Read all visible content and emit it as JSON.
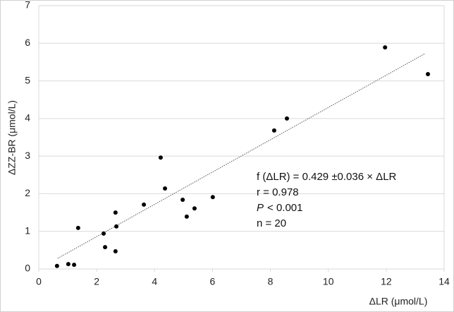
{
  "chart_data": {
    "type": "scatter",
    "x_label": "ΔLR (μmol/L)",
    "y_label": "ΔZZ-BR (μmol/L)",
    "x": [
      0.63,
      1.02,
      1.22,
      1.36,
      2.24,
      2.29,
      2.65,
      2.68,
      2.65,
      3.63,
      4.21,
      4.36,
      4.97,
      5.11,
      5.38,
      6.01,
      8.13,
      8.57,
      11.96,
      13.44
    ],
    "values": [
      0.08,
      0.13,
      0.11,
      1.09,
      0.94,
      0.58,
      1.5,
      1.13,
      0.47,
      1.71,
      2.96,
      2.14,
      1.84,
      1.39,
      1.61,
      1.91,
      3.68,
      4.0,
      5.89,
      5.18
    ],
    "color": "#000000",
    "trendline": {
      "x": [
        0.65,
        13.35
      ],
      "values": [
        0.28,
        5.73
      ],
      "color": "#555555"
    },
    "annotations": [
      "f (ΔLR) = 0.429 ±0.036 × ΔLR",
      "r = 0.978",
      {
        "symbol": "P",
        "text": "< 0.001"
      },
      "n = 20"
    ],
    "xlim": [
      0,
      14
    ],
    "xticks": [
      0,
      2,
      4,
      6,
      8,
      10,
      12,
      14
    ],
    "ylim": [
      0,
      7
    ],
    "yticks": [
      0,
      1,
      2,
      3,
      4,
      5,
      6,
      7
    ],
    "grid": true
  }
}
